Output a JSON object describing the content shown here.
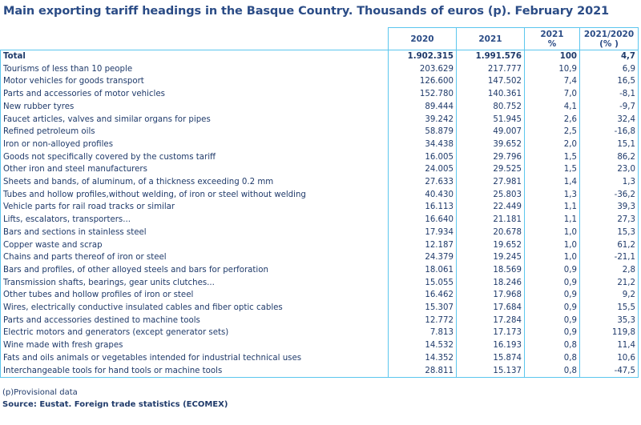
{
  "title": "Main exporting tariff headings in the Basque Country. Thousands of euros (p). February 2021",
  "headers": {
    "c1": "2020",
    "c2": "2021",
    "c3a": "2021",
    "c3b": "%",
    "c4a": "2021/2020",
    "c4b": "(% )"
  },
  "rows": [
    [
      "Total",
      "1.902.315",
      "1.991.576",
      "100",
      "4,7"
    ],
    [
      "Tourisms of less than 10 people",
      "203.629",
      "217.777",
      "10,9",
      "6,9"
    ],
    [
      "Motor vehicles for goods transport",
      "126.600",
      "147.502",
      "7,4",
      "16,5"
    ],
    [
      "Parts and accessories of motor vehicles",
      "152.780",
      "140.361",
      "7,0",
      "-8,1"
    ],
    [
      "New rubber tyres",
      "89.444",
      "80.752",
      "4,1",
      "-9,7"
    ],
    [
      "Faucet articles, valves and similar organs for pipes",
      "39.242",
      "51.945",
      "2,6",
      "32,4"
    ],
    [
      "Refined petroleum oils",
      "58.879",
      "49.007",
      "2,5",
      "-16,8"
    ],
    [
      "Iron or non-alloyed profiles",
      "34.438",
      "39.652",
      "2,0",
      "15,1"
    ],
    [
      "Goods not specifically covered by the customs tariff",
      "16.005",
      "29.796",
      "1,5",
      "86,2"
    ],
    [
      "Other iron and steel manufacturers",
      "24.005",
      "29.525",
      "1,5",
      "23,0"
    ],
    [
      "Sheets and bands, of aluminum, of a thickness exceeding 0.2 mm",
      "27.633",
      "27.981",
      "1,4",
      "1,3"
    ],
    [
      "Tubes and hollow profiles,without welding, of iron or steel without welding",
      "40.430",
      "25.803",
      "1,3",
      "-36,2"
    ],
    [
      "Vehicle parts for rail road tracks or similar",
      "16.113",
      "22.449",
      "1,1",
      "39,3"
    ],
    [
      "Lifts, escalators, transporters...",
      "16.640",
      "21.181",
      "1,1",
      "27,3"
    ],
    [
      "Bars and sections in stainless steel",
      "17.934",
      "20.678",
      "1,0",
      "15,3"
    ],
    [
      "Copper waste and scrap",
      "12.187",
      "19.652",
      "1,0",
      "61,2"
    ],
    [
      "Chains and parts thereof of iron or steel",
      "24.379",
      "19.245",
      "1,0",
      "-21,1"
    ],
    [
      "Bars and profiles, of other alloyed steels and bars for perforation",
      "18.061",
      "18.569",
      "0,9",
      "2,8"
    ],
    [
      "Transmission shafts, bearings, gear units clutches...",
      "15.055",
      "18.246",
      "0,9",
      "21,2"
    ],
    [
      "Other tubes and hollow profiles of iron or steel",
      "16.462",
      "17.968",
      "0,9",
      "9,2"
    ],
    [
      "Wires, electrically conductive insulated cables and fiber optic cables",
      "15.307",
      "17.684",
      "0,9",
      "15,5"
    ],
    [
      "Parts and accessories destined to machine tools",
      "12.772",
      "17.284",
      "0,9",
      "35,3"
    ],
    [
      "Electric motors and generators (except generator sets)",
      "7.813",
      "17.173",
      "0,9",
      "119,8"
    ],
    [
      "Wine made with fresh grapes",
      "14.532",
      "16.193",
      "0,8",
      "11,4"
    ],
    [
      "Fats and oils animals or vegetables intended for industrial technical uses",
      "14.352",
      "15.874",
      "0,8",
      "10,6"
    ],
    [
      "Interchangeable tools for hand tools or machine tools",
      "28.811",
      "15.137",
      "0,8",
      "-47,5"
    ]
  ],
  "note": "(p)Provisional data",
  "source": "Source: Eustat. Foreign trade statistics (ECOMEX)"
}
